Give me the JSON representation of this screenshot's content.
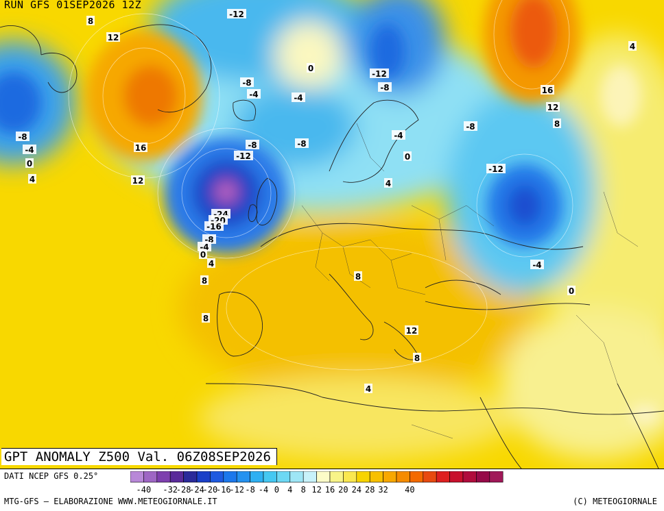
{
  "header": {
    "run": "RUN GFS 01SEP2026 12Z"
  },
  "map_title": "GPT ANOMALY Z500 Val. 06Z08SEP2026",
  "footer": {
    "data_source": "DATI NCEP GFS 0.25°",
    "credit_left": "MTG-GFS – ELABORAZIONE WWW.METEOGIORNALE.IT",
    "credit_right": "(C) METEOGIORNALE"
  },
  "scale": {
    "ticks": [
      "-40",
      "-36",
      "-32",
      "-28",
      "-24",
      "-20",
      "-16",
      "-12",
      "-8",
      "-4",
      "0",
      "4",
      "8",
      "12",
      "16",
      "20",
      "24",
      "28",
      "32",
      "40"
    ],
    "visible_labels": [
      "-40",
      "-32",
      "-28",
      "-24",
      "-20",
      "-16",
      "-12",
      "-8",
      "-4",
      "0",
      "4",
      "8",
      "12",
      "16",
      "20",
      "24",
      "28",
      "32",
      "40"
    ],
    "colors": [
      "#b888d8",
      "#9e66c4",
      "#7e3fae",
      "#5a2a9a",
      "#2a2a9a",
      "#1a3fc8",
      "#1e5ae0",
      "#1c78ec",
      "#2492f0",
      "#2eb0f2",
      "#45c8f2",
      "#6cd8f4",
      "#9ee6f6",
      "#c8f2fa",
      "#fcfcc8",
      "#f8f488",
      "#fae850",
      "#f8d400",
      "#f8c000",
      "#f8a800",
      "#f68c00",
      "#f46a00",
      "#e84a10",
      "#de2020",
      "#c8102c",
      "#b00c3c",
      "#960a48",
      "#a01858"
    ]
  },
  "value_labels": [
    "8",
    "12",
    "16",
    "12",
    "-8",
    "-4",
    "0",
    "4",
    "-12",
    "-8",
    "-4",
    "-4",
    "-8",
    "0",
    "-12",
    "-8",
    "-8",
    "-12",
    "-24",
    "-20",
    "-16",
    "-8",
    "-4",
    "0",
    "4",
    "8",
    "8",
    "4",
    "0",
    "-4",
    "-8",
    "-12",
    "16",
    "12",
    "8",
    "4",
    "4",
    "8",
    "12",
    "8",
    "-4",
    "0",
    "4"
  ]
}
